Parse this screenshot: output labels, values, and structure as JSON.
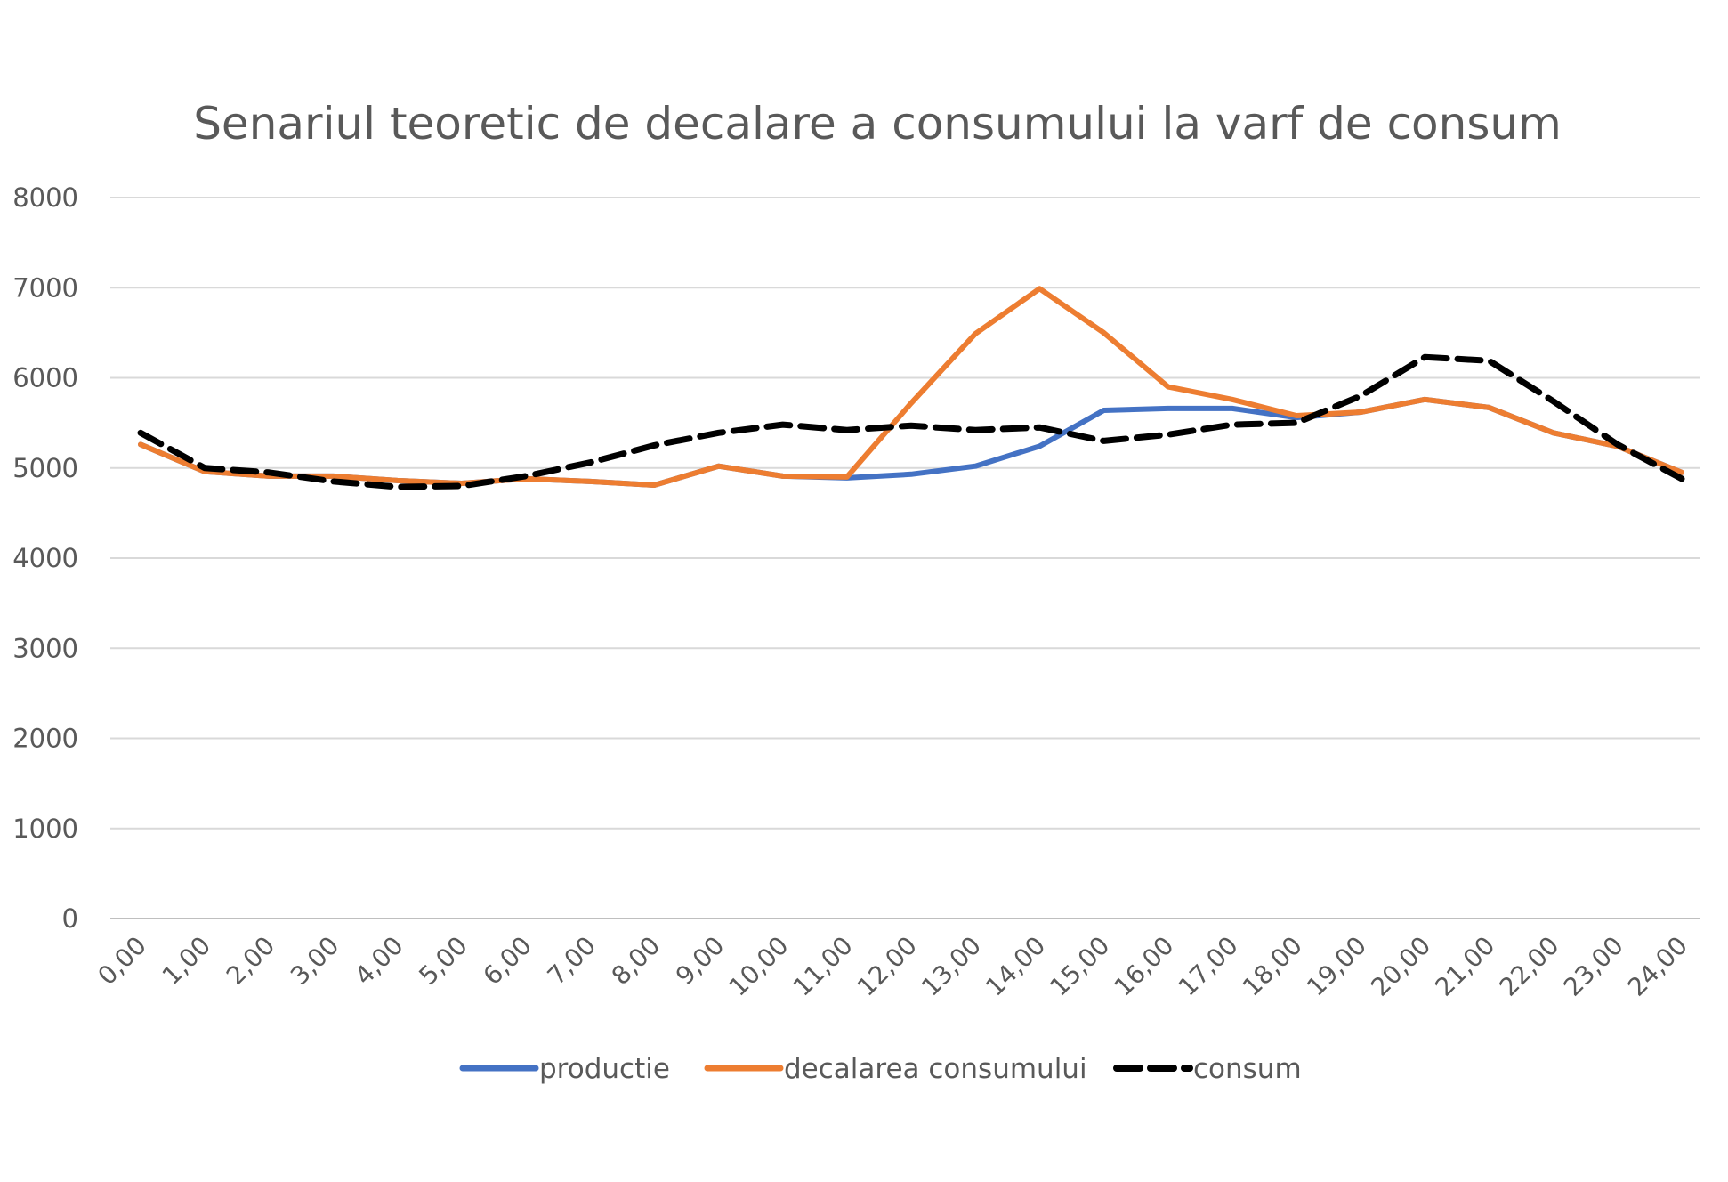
{
  "chart_data": {
    "type": "line",
    "title": "Senariul teoretic de decalare a consumului la varf de consum",
    "xlabel": "",
    "ylabel": "",
    "ylim": [
      0,
      8000
    ],
    "yticks": [
      "0",
      "1000",
      "2000",
      "3000",
      "4000",
      "5000",
      "6000",
      "7000",
      "8000"
    ],
    "categories": [
      "0,00",
      "1,00",
      "2,00",
      "3,00",
      "4,00",
      "5,00",
      "6,00",
      "7,00",
      "8,00",
      "9,00",
      "10,00",
      "11,00",
      "12,00",
      "13,00",
      "14,00",
      "15,00",
      "16,00",
      "17,00",
      "18,00",
      "19,00",
      "20,00",
      "21,00",
      "22,00",
      "23,00",
      "24,00"
    ],
    "grid": true,
    "legend_position": "bottom",
    "series": [
      {
        "name": "productie",
        "color": "#4472c4",
        "style": "solid",
        "values": [
          5260,
          4960,
          4910,
          4910,
          4860,
          4830,
          4880,
          4850,
          4810,
          5020,
          4910,
          4890,
          4930,
          5020,
          5240,
          5640,
          5660,
          5660,
          5560,
          5620,
          5760,
          5670,
          5390,
          5240,
          4950
        ]
      },
      {
        "name": "decalarea consumului",
        "color": "#ed7d31",
        "style": "solid",
        "values": [
          5260,
          4960,
          4910,
          4910,
          4860,
          4830,
          4880,
          4850,
          4810,
          5020,
          4910,
          4900,
          5720,
          6490,
          6990,
          6500,
          5900,
          5760,
          5580,
          5620,
          5760,
          5670,
          5390,
          5240,
          4950
        ]
      },
      {
        "name": "consum",
        "color": "#000000",
        "style": "dashed",
        "values": [
          5390,
          5000,
          4950,
          4850,
          4790,
          4800,
          4910,
          5060,
          5250,
          5390,
          5480,
          5420,
          5470,
          5420,
          5450,
          5300,
          5370,
          5480,
          5500,
          5800,
          6230,
          6190,
          5740,
          5260,
          4880
        ]
      }
    ]
  }
}
